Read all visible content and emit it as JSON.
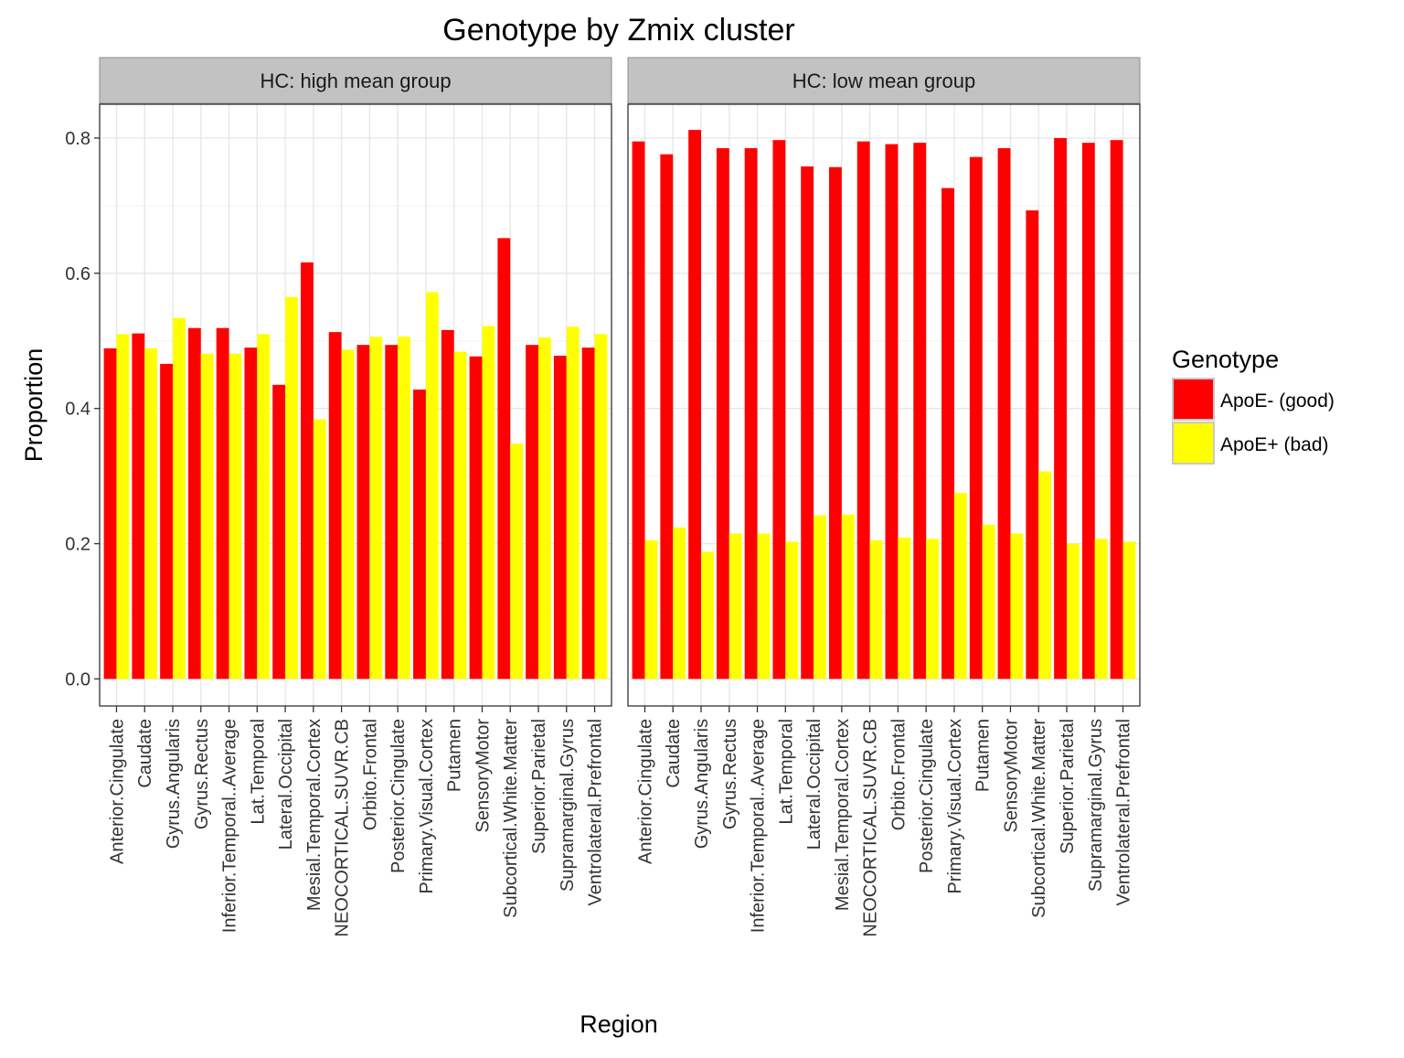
{
  "chart_data": {
    "type": "bar",
    "title": "Genotype by Zmix cluster",
    "xlabel": "Region",
    "ylabel": "Proportion",
    "ylim": [
      -0.04,
      0.85
    ],
    "yticks": [
      0.0,
      0.2,
      0.4,
      0.6,
      0.8
    ],
    "ytick_labels": [
      "0.0",
      "0.2",
      "0.4",
      "0.6",
      "0.8"
    ],
    "grid": true,
    "legend": {
      "title": "Genotype",
      "placement": "right"
    },
    "categories": [
      "Anterior.Cingulate",
      "Caudate",
      "Gyrus.Angularis",
      "Gyrus.Rectus",
      "Inferior.Temporal..Average",
      "Lat.Temporal",
      "Lateral.Occipital",
      "Mesial.Temporal.Cortex",
      "NEOCORTICAL.SUVR.CB",
      "Orbito.Frontal",
      "Posterior.Cingulate",
      "Primary.Visual.Cortex",
      "Putamen",
      "SensoryMotor",
      "Subcortical.White.Matter",
      "Superior.Parietal",
      "Supramarginal.Gyrus",
      "Ventrolateral.Prefrontal"
    ],
    "series": [
      {
        "name": "ApoE- (good)",
        "color": "#ff0000"
      },
      {
        "name": "ApoE+ (bad)",
        "color": "#ffff00"
      }
    ],
    "panels": [
      {
        "label": "HC: high mean group",
        "values": [
          [
            0.489,
            0.511,
            0.466,
            0.519,
            0.519,
            0.49,
            0.435,
            0.616,
            0.513,
            0.494,
            0.494,
            0.428,
            0.516,
            0.477,
            0.652,
            0.494,
            0.478,
            0.49
          ],
          [
            0.51,
            0.489,
            0.534,
            0.481,
            0.481,
            0.51,
            0.565,
            0.384,
            0.487,
            0.506,
            0.506,
            0.572,
            0.484,
            0.522,
            0.348,
            0.505,
            0.521,
            0.51
          ]
        ]
      },
      {
        "label": "HC: low mean group",
        "values": [
          [
            0.795,
            0.776,
            0.812,
            0.785,
            0.785,
            0.797,
            0.758,
            0.757,
            0.795,
            0.791,
            0.793,
            0.726,
            0.772,
            0.785,
            0.693,
            0.8,
            0.793,
            0.797
          ],
          [
            0.205,
            0.224,
            0.188,
            0.215,
            0.215,
            0.203,
            0.242,
            0.243,
            0.205,
            0.209,
            0.207,
            0.275,
            0.228,
            0.215,
            0.307,
            0.2,
            0.207,
            0.203
          ]
        ]
      }
    ]
  }
}
